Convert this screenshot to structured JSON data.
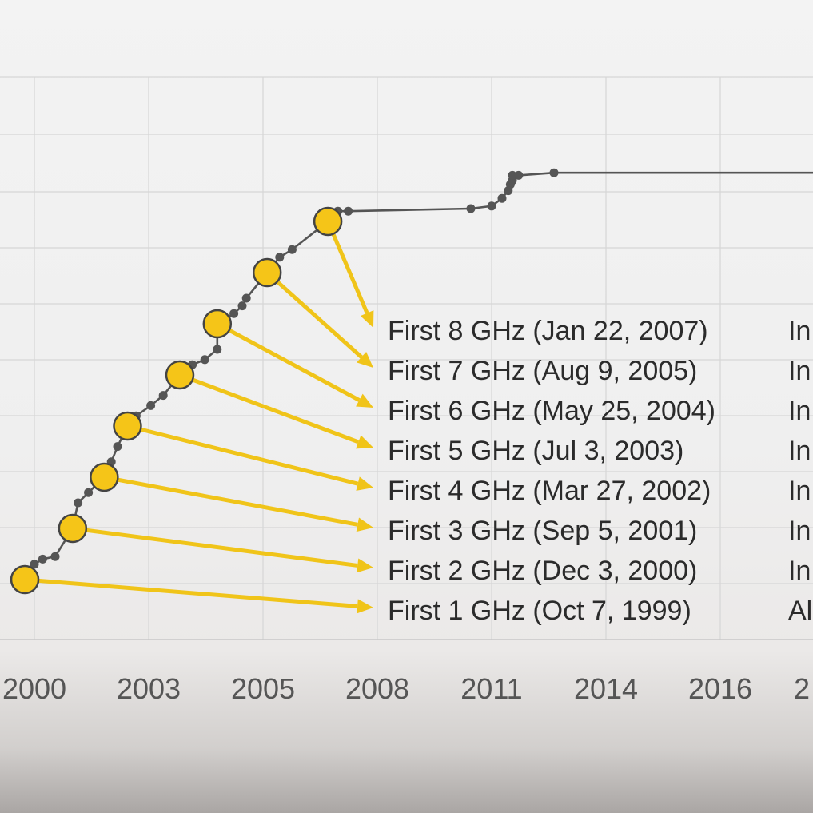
{
  "chart_data": {
    "type": "line",
    "title": "",
    "xlabel": "",
    "ylabel": "",
    "x_ticks": [
      "2000",
      "2003",
      "2005",
      "2008",
      "2011",
      "2014",
      "2016",
      "2"
    ],
    "grid": true,
    "series": [
      {
        "values": [
          {
            "x": 1999.77,
            "y": 1.0
          },
          {
            "x": 2000.0,
            "y": 1.3
          },
          {
            "x": 2000.2,
            "y": 1.4
          },
          {
            "x": 2000.5,
            "y": 1.45
          },
          {
            "x": 2000.92,
            "y": 2.0
          },
          {
            "x": 2001.05,
            "y": 2.5
          },
          {
            "x": 2001.3,
            "y": 2.7
          },
          {
            "x": 2001.68,
            "y": 3.0
          },
          {
            "x": 2001.85,
            "y": 3.3
          },
          {
            "x": 2002.0,
            "y": 3.6
          },
          {
            "x": 2002.24,
            "y": 4.0
          },
          {
            "x": 2002.45,
            "y": 4.2
          },
          {
            "x": 2002.8,
            "y": 4.4
          },
          {
            "x": 2003.1,
            "y": 4.6
          },
          {
            "x": 2003.5,
            "y": 5.0
          },
          {
            "x": 2003.8,
            "y": 5.2
          },
          {
            "x": 2004.1,
            "y": 5.3
          },
          {
            "x": 2004.4,
            "y": 5.5
          },
          {
            "x": 2004.4,
            "y": 6.0
          },
          {
            "x": 2004.8,
            "y": 6.2
          },
          {
            "x": 2005.0,
            "y": 6.35
          },
          {
            "x": 2005.1,
            "y": 6.5
          },
          {
            "x": 2005.6,
            "y": 7.0
          },
          {
            "x": 2005.9,
            "y": 7.3
          },
          {
            "x": 2006.2,
            "y": 7.45
          },
          {
            "x": 2007.06,
            "y": 8.0
          },
          {
            "x": 2007.3,
            "y": 8.2
          },
          {
            "x": 2007.55,
            "y": 8.2
          },
          {
            "x": 2010.5,
            "y": 8.25
          },
          {
            "x": 2011.0,
            "y": 8.3
          },
          {
            "x": 2011.25,
            "y": 8.45
          },
          {
            "x": 2011.4,
            "y": 8.6
          },
          {
            "x": 2011.45,
            "y": 8.72
          },
          {
            "x": 2011.5,
            "y": 8.8
          },
          {
            "x": 2011.5,
            "y": 8.9
          },
          {
            "x": 2011.65,
            "y": 8.9
          },
          {
            "x": 2012.5,
            "y": 8.95
          },
          {
            "x": 2019.0,
            "y": 8.95
          }
        ]
      }
    ],
    "milestones": [
      {
        "x": 1999.77,
        "y": 1.0,
        "label": "First 1 GHz (Oct 7, 1999)",
        "extra": "Al"
      },
      {
        "x": 2000.92,
        "y": 2.0,
        "label": "First 2 GHz (Dec 3, 2000)",
        "extra": "In"
      },
      {
        "x": 2001.68,
        "y": 3.0,
        "label": "First 3 GHz (Sep 5, 2001)",
        "extra": "In"
      },
      {
        "x": 2002.24,
        "y": 4.0,
        "label": "First 4 GHz (Mar 27, 2002)",
        "extra": "In"
      },
      {
        "x": 2003.5,
        "y": 5.0,
        "label": "First 5 GHz (Jul 3, 2003)",
        "extra": "In"
      },
      {
        "x": 2004.4,
        "y": 6.0,
        "label": "First 6 GHz (May 25, 2004)",
        "extra": "In"
      },
      {
        "x": 2005.6,
        "y": 7.0,
        "label": "First 7 GHz (Aug 9, 2005)",
        "extra": "In"
      },
      {
        "x": 2007.06,
        "y": 8.0,
        "label": "First 8 GHz (Jan 22, 2007)",
        "extra": "In"
      }
    ],
    "colors": {
      "milestone_fill": "#f5c518",
      "arrow": "#f0c419",
      "line": "#555555"
    }
  }
}
